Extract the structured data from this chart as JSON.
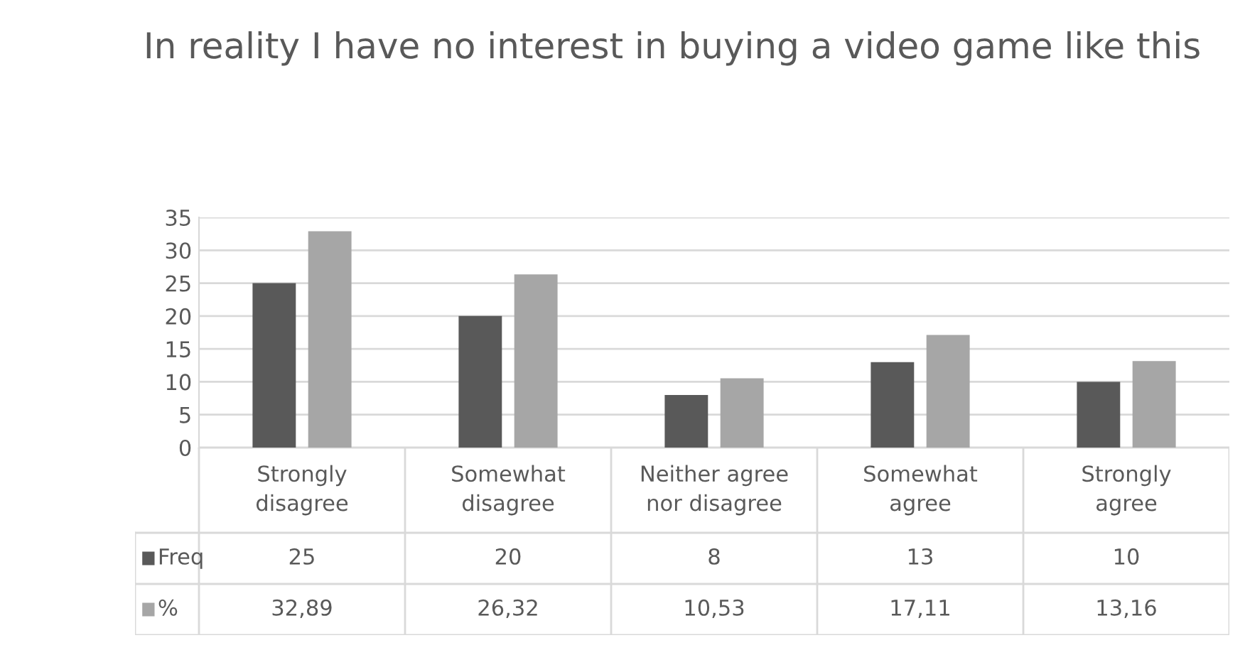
{
  "chart_data": {
    "type": "bar",
    "title": "In reality I have no interest in buying a video game like this",
    "categories": [
      "Strongly disagree",
      "Somewhat disagree",
      "Neither agree nor disagree",
      "Somewhat agree",
      "Strongly agree"
    ],
    "series": [
      {
        "name": "Freq",
        "color": "#595959",
        "values": [
          25,
          20,
          8,
          13,
          10
        ],
        "value_labels": [
          "25",
          "20",
          "8",
          "13",
          "10"
        ]
      },
      {
        "name": "%",
        "color": "#a6a6a6",
        "values": [
          32.89,
          26.32,
          10.53,
          17.11,
          13.16
        ],
        "value_labels": [
          "32,89",
          "26,32",
          "10,53",
          "17,11",
          "13,16"
        ]
      }
    ],
    "ylim": [
      0,
      35
    ],
    "yticks": [
      0,
      5,
      10,
      15,
      20,
      25,
      30,
      35
    ],
    "grid": "y",
    "legend": "bottom"
  }
}
